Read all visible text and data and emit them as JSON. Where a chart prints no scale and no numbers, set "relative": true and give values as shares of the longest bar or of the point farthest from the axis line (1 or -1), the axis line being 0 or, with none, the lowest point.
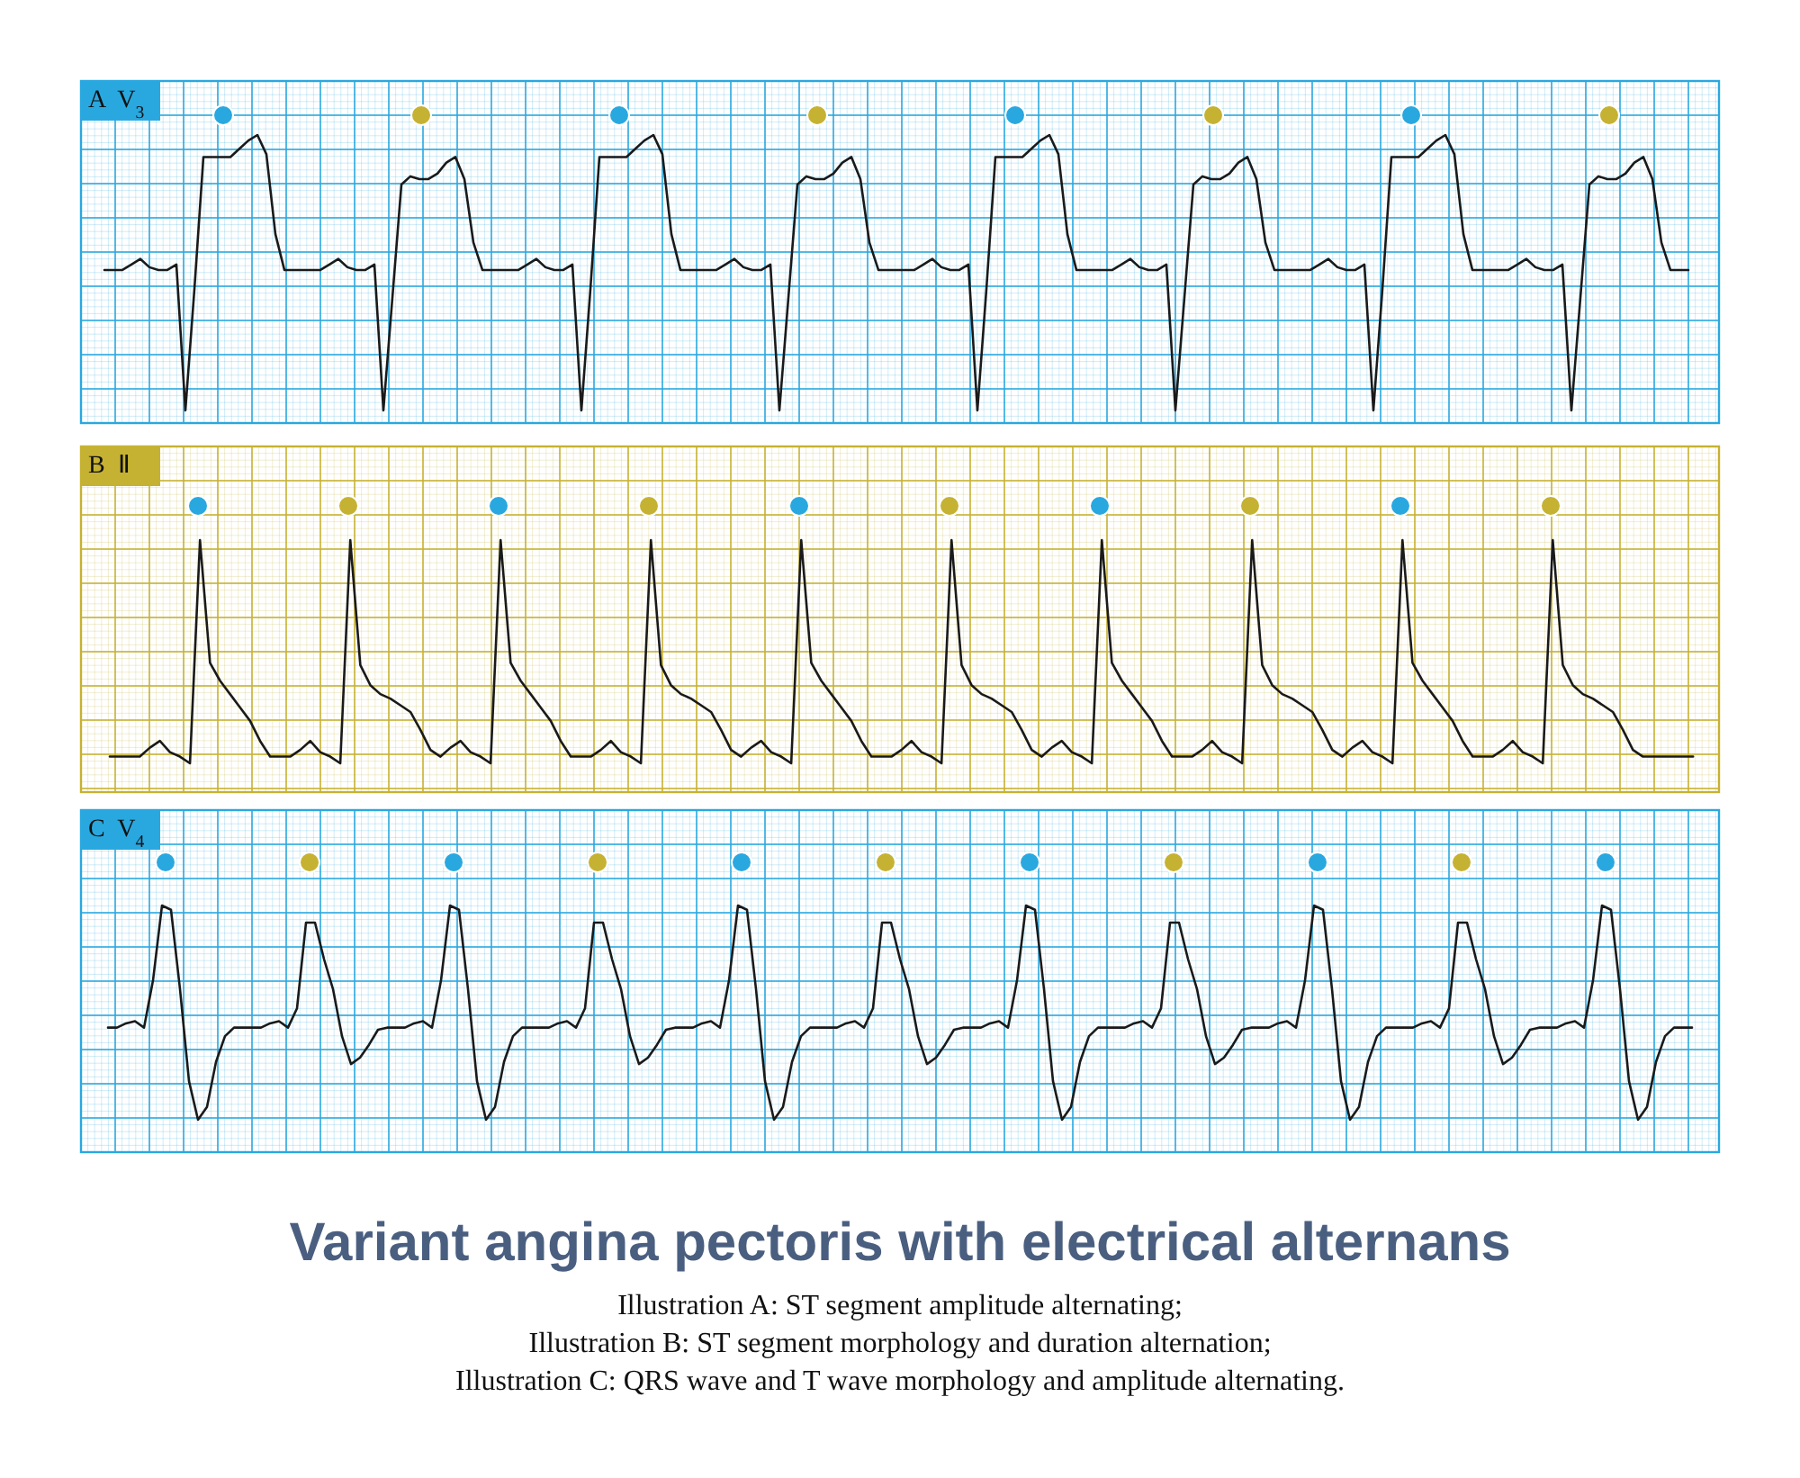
{
  "chart_data": [
    {
      "type": "line",
      "title": "A  V$_{3}$",
      "relative": true,
      "grid": true,
      "color": "#1a1a1a",
      "categories": [
        null,
        null,
        null,
        null,
        null,
        null,
        null,
        null,
        null,
        null,
        null,
        null,
        null,
        null,
        null,
        null,
        null,
        null,
        null,
        null,
        null,
        null,
        null,
        null,
        null,
        null,
        null,
        null,
        null,
        null,
        null,
        null,
        null,
        null,
        null,
        null,
        null,
        null,
        null,
        null,
        null,
        null,
        null,
        null,
        null,
        null,
        null,
        null,
        null,
        null,
        null,
        null,
        null,
        null,
        null,
        null,
        null,
        null,
        null,
        null,
        null,
        null,
        null,
        null,
        null,
        null,
        null,
        null,
        null,
        null,
        null,
        null,
        null,
        null,
        null,
        null,
        null,
        null,
        null,
        null,
        null,
        null,
        null,
        null,
        null,
        null,
        null,
        null,
        null,
        null,
        null,
        null,
        null,
        null,
        null,
        null,
        null,
        null,
        null,
        null,
        null,
        null,
        null,
        null,
        null,
        null,
        null,
        null,
        null,
        null,
        null,
        null,
        null,
        null,
        null,
        null,
        null,
        null,
        null,
        null,
        null,
        null,
        null,
        null,
        null,
        null,
        null,
        null,
        null,
        null,
        null,
        null,
        null,
        null,
        null,
        null,
        null,
        null,
        null,
        null,
        null,
        null,
        null,
        null,
        null,
        null,
        null,
        null,
        null,
        null,
        null,
        null,
        null,
        null,
        null,
        null,
        null,
        null,
        null,
        null,
        null,
        null,
        null,
        null,
        null,
        null,
        null,
        null,
        null,
        null,
        null,
        null,
        null,
        null,
        null,
        null,
        null
      ],
      "values": [
        0.51,
        0.51,
        0.51,
        0.53,
        0.55,
        0.52,
        0.51,
        0.51,
        0.53,
        0,
        0.44,
        0.92,
        0.92,
        0.92,
        0.92,
        0.95,
        0.98,
        1,
        0.93,
        0.64,
        0.51,
        0.51,
        0.51,
        0.51,
        0.51,
        0.53,
        0.55,
        0.52,
        0.51,
        0.51,
        0.53,
        0,
        0.41,
        0.82,
        0.85,
        0.84,
        0.84,
        0.86,
        0.9,
        0.92,
        0.84,
        0.61,
        0.51,
        0.51,
        0.51,
        0.51,
        0.51,
        0.53,
        0.55,
        0.52,
        0.51,
        0.51,
        0.53,
        0,
        0.44,
        0.92,
        0.92,
        0.92,
        0.92,
        0.95,
        0.98,
        1,
        0.93,
        0.64,
        0.51,
        0.51,
        0.51,
        0.51,
        0.51,
        0.53,
        0.55,
        0.52,
        0.51,
        0.51,
        0.53,
        0,
        0.41,
        0.82,
        0.85,
        0.84,
        0.84,
        0.86,
        0.9,
        0.92,
        0.84,
        0.61,
        0.51,
        0.51,
        0.51,
        0.51,
        0.51,
        0.53,
        0.55,
        0.52,
        0.51,
        0.51,
        0.53,
        0,
        0.44,
        0.92,
        0.92,
        0.92,
        0.92,
        0.95,
        0.98,
        1,
        0.93,
        0.64,
        0.51,
        0.51,
        0.51,
        0.51,
        0.51,
        0.53,
        0.55,
        0.52,
        0.51,
        0.51,
        0.53,
        0,
        0.41,
        0.82,
        0.85,
        0.84,
        0.84,
        0.86,
        0.9,
        0.92,
        0.84,
        0.61,
        0.51,
        0.51,
        0.51,
        0.51,
        0.51,
        0.53,
        0.55,
        0.52,
        0.51,
        0.51,
        0.53,
        0,
        0.44,
        0.92,
        0.92,
        0.92,
        0.92,
        0.95,
        0.98,
        1,
        0.93,
        0.64,
        0.51,
        0.51,
        0.51,
        0.51,
        0.51,
        0.53,
        0.55,
        0.52,
        0.51,
        0.51,
        0.53,
        0,
        0.41,
        0.82,
        0.85,
        0.84,
        0.84,
        0.86,
        0.9,
        0.92,
        0.84,
        0.61,
        0.51,
        0.51,
        0.51
      ]
    },
    {
      "type": "line",
      "title": "B  Ⅱ",
      "relative": true,
      "grid": true,
      "color": "#1a1a1a",
      "categories": [
        null,
        null,
        null,
        null,
        null,
        null,
        null,
        null,
        null,
        null,
        null,
        null,
        null,
        null,
        null,
        null,
        null,
        null,
        null,
        null,
        null,
        null,
        null,
        null,
        null,
        null,
        null,
        null,
        null,
        null,
        null,
        null,
        null,
        null,
        null,
        null,
        null,
        null,
        null,
        null,
        null,
        null,
        null,
        null,
        null,
        null,
        null,
        null,
        null,
        null,
        null,
        null,
        null,
        null,
        null,
        null,
        null,
        null,
        null,
        null,
        null,
        null,
        null,
        null,
        null,
        null,
        null,
        null,
        null,
        null,
        null,
        null,
        null,
        null,
        null,
        null,
        null,
        null,
        null,
        null,
        null,
        null,
        null,
        null,
        null,
        null,
        null,
        null,
        null,
        null,
        null,
        null,
        null,
        null,
        null,
        null,
        null,
        null,
        null,
        null,
        null,
        null,
        null,
        null,
        null,
        null,
        null,
        null,
        null,
        null,
        null,
        null,
        null,
        null,
        null,
        null,
        null,
        null,
        null,
        null,
        null,
        null,
        null,
        null,
        null,
        null,
        null,
        null,
        null,
        null,
        null,
        null,
        null,
        null,
        null,
        null,
        null,
        null,
        null,
        null,
        null,
        null,
        null,
        null,
        null,
        null,
        null,
        null,
        null,
        null,
        null,
        null,
        null,
        null,
        null,
        null,
        null,
        null,
        null
      ],
      "values": [
        0.03,
        0.03,
        0.03,
        0.03,
        0.07,
        0.1,
        0.05,
        0.03,
        0,
        1,
        0.45,
        0.37,
        0.31,
        0.25,
        0.19,
        0.1,
        0.03,
        0.03,
        0.03,
        0.06,
        0.1,
        0.05,
        0.03,
        0,
        1,
        0.44,
        0.35,
        0.31,
        0.29,
        0.26,
        0.23,
        0.15,
        0.06,
        0.03,
        0.07,
        0.1,
        0.05,
        0.03,
        0,
        1,
        0.45,
        0.37,
        0.31,
        0.25,
        0.19,
        0.1,
        0.03,
        0.03,
        0.03,
        0.06,
        0.1,
        0.05,
        0.03,
        0,
        1,
        0.44,
        0.35,
        0.31,
        0.29,
        0.26,
        0.23,
        0.15,
        0.06,
        0.03,
        0.07,
        0.1,
        0.05,
        0.03,
        0,
        1,
        0.45,
        0.37,
        0.31,
        0.25,
        0.19,
        0.1,
        0.03,
        0.03,
        0.03,
        0.06,
        0.1,
        0.05,
        0.03,
        0,
        1,
        0.44,
        0.35,
        0.31,
        0.29,
        0.26,
        0.23,
        0.15,
        0.06,
        0.03,
        0.07,
        0.1,
        0.05,
        0.03,
        0,
        1,
        0.45,
        0.37,
        0.31,
        0.25,
        0.19,
        0.1,
        0.03,
        0.03,
        0.03,
        0.06,
        0.1,
        0.05,
        0.03,
        0,
        1,
        0.44,
        0.35,
        0.31,
        0.29,
        0.26,
        0.23,
        0.15,
        0.06,
        0.03,
        0.07,
        0.1,
        0.05,
        0.03,
        0,
        1,
        0.45,
        0.37,
        0.31,
        0.25,
        0.19,
        0.1,
        0.03,
        0.03,
        0.03,
        0.06,
        0.1,
        0.05,
        0.03,
        0,
        1,
        0.44,
        0.35,
        0.31,
        0.29,
        0.26,
        0.23,
        0.15,
        0.06,
        0.03,
        0.03,
        0.03,
        0.03,
        0.03,
        0.03
      ]
    },
    {
      "type": "line",
      "title": "C  V$_{4}$",
      "relative": true,
      "grid": true,
      "color": "#1a1a1a",
      "categories": [
        null,
        null,
        null,
        null,
        null,
        null,
        null,
        null,
        null,
        null,
        null,
        null,
        null,
        null,
        null,
        null,
        null,
        null,
        null,
        null,
        null,
        null,
        null,
        null,
        null,
        null,
        null,
        null,
        null,
        null,
        null,
        null,
        null,
        null,
        null,
        null,
        null,
        null,
        null,
        null,
        null,
        null,
        null,
        null,
        null,
        null,
        null,
        null,
        null,
        null,
        null,
        null,
        null,
        null,
        null,
        null,
        null,
        null,
        null,
        null,
        null,
        null,
        null,
        null,
        null,
        null,
        null,
        null,
        null,
        null,
        null,
        null,
        null,
        null,
        null,
        null,
        null,
        null,
        null,
        null,
        null,
        null,
        null,
        null,
        null,
        null,
        null,
        null,
        null,
        null,
        null,
        null,
        null,
        null,
        null,
        null,
        null,
        null,
        null,
        null,
        null,
        null,
        null,
        null,
        null,
        null,
        null,
        null,
        null,
        null,
        null,
        null,
        null,
        null,
        null,
        null,
        null,
        null,
        null,
        null,
        null,
        null,
        null,
        null,
        null,
        null,
        null,
        null,
        null,
        null,
        null,
        null,
        null,
        null,
        null,
        null,
        null,
        null,
        null,
        null,
        null,
        null,
        null,
        null,
        null,
        null,
        null,
        null,
        null,
        null,
        null,
        null,
        null,
        null,
        null,
        null,
        null,
        null,
        null,
        null,
        null,
        null,
        null,
        null,
        null,
        null,
        null,
        null,
        null,
        null,
        null,
        null,
        null,
        null,
        null,
        null,
        null
      ],
      "values": [
        0.43,
        0.43,
        0.45,
        0.46,
        0.43,
        0.65,
        1,
        0.98,
        0.61,
        0.18,
        0,
        0.06,
        0.27,
        0.39,
        0.43,
        0.43,
        0.43,
        0.43,
        0.45,
        0.46,
        0.43,
        0.52,
        0.92,
        0.92,
        0.75,
        0.61,
        0.39,
        0.26,
        0.29,
        0.35,
        0.42,
        0.43,
        0.43,
        0.43,
        0.45,
        0.46,
        0.43,
        0.65,
        1,
        0.98,
        0.61,
        0.18,
        0,
        0.06,
        0.27,
        0.39,
        0.43,
        0.43,
        0.43,
        0.43,
        0.45,
        0.46,
        0.43,
        0.52,
        0.92,
        0.92,
        0.75,
        0.61,
        0.39,
        0.26,
        0.29,
        0.35,
        0.42,
        0.43,
        0.43,
        0.43,
        0.45,
        0.46,
        0.43,
        0.65,
        1,
        0.98,
        0.61,
        0.18,
        0,
        0.06,
        0.27,
        0.39,
        0.43,
        0.43,
        0.43,
        0.43,
        0.45,
        0.46,
        0.43,
        0.52,
        0.92,
        0.92,
        0.75,
        0.61,
        0.39,
        0.26,
        0.29,
        0.35,
        0.42,
        0.43,
        0.43,
        0.43,
        0.45,
        0.46,
        0.43,
        0.65,
        1,
        0.98,
        0.61,
        0.18,
        0,
        0.06,
        0.27,
        0.39,
        0.43,
        0.43,
        0.43,
        0.43,
        0.45,
        0.46,
        0.43,
        0.52,
        0.92,
        0.92,
        0.75,
        0.61,
        0.39,
        0.26,
        0.29,
        0.35,
        0.42,
        0.43,
        0.43,
        0.43,
        0.45,
        0.46,
        0.43,
        0.65,
        1,
        0.98,
        0.61,
        0.18,
        0,
        0.06,
        0.27,
        0.39,
        0.43,
        0.43,
        0.43,
        0.43,
        0.45,
        0.46,
        0.43,
        0.52,
        0.92,
        0.92,
        0.75,
        0.61,
        0.39,
        0.26,
        0.29,
        0.35,
        0.42,
        0.43,
        0.43,
        0.43,
        0.45,
        0.46,
        0.43,
        0.65,
        1,
        0.98,
        0.61,
        0.18,
        0,
        0.06,
        0.27,
        0.39,
        0.43,
        0.43,
        0.43
      ]
    },
    {
      "type": "other",
      "title": "Variant angina pectoris with electrical alternans",
      "annotations": [
        "Illustration A: ST segment amplitude alternating;",
        "Illustration B: ST segment morphology and duration alternation;",
        "Illustration C: QRS wave and T wave morphology and amplitude alternating."
      ]
    }
  ]
}
